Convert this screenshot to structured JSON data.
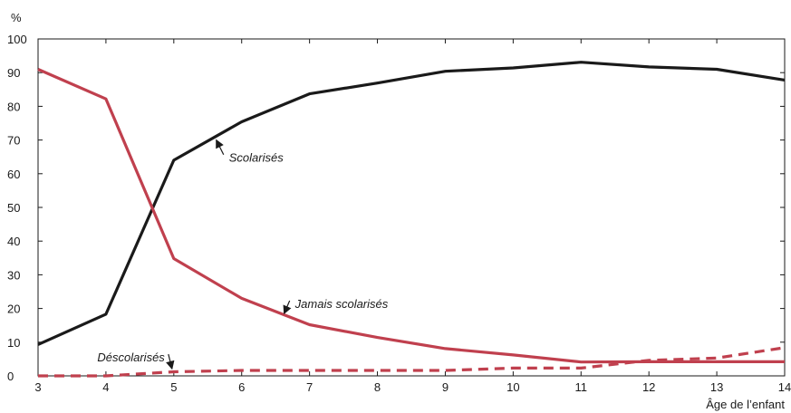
{
  "chart_data": {
    "type": "line",
    "ylabel": "%",
    "xlabel": "Âge de l’enfant",
    "xlim": [
      3,
      14
    ],
    "ylim": [
      0,
      100
    ],
    "x_ticks": [
      3,
      4,
      5,
      6,
      7,
      8,
      9,
      10,
      11,
      12,
      13,
      14
    ],
    "y_ticks": [
      0,
      10,
      20,
      30,
      40,
      50,
      60,
      70,
      80,
      90,
      100
    ],
    "grid": false,
    "x": [
      3,
      4,
      5,
      6,
      7,
      8,
      9,
      10,
      11,
      12,
      13,
      14
    ],
    "series": [
      {
        "name": "Scolarisés",
        "color": "#1a1a1a",
        "dash": "solid",
        "values": [
          9.3,
          18.3,
          64.0,
          75.4,
          83.7,
          86.9,
          90.4,
          91.4,
          93.1,
          91.7,
          91.0,
          87.8
        ]
      },
      {
        "name": "Jamais scolarisés",
        "color": "#c0404e",
        "dash": "solid",
        "values": [
          91.0,
          82.2,
          34.8,
          23.0,
          15.2,
          11.4,
          8.1,
          6.2,
          4.1,
          4.2,
          4.2,
          4.2
        ]
      },
      {
        "name": "Déscolarisés",
        "color": "#c0404e",
        "dash": "dashed",
        "values": [
          0,
          0,
          1.2,
          1.6,
          1.6,
          1.6,
          1.6,
          2.3,
          2.3,
          4.6,
          5.3,
          8.4
        ]
      }
    ],
    "annotations": [
      {
        "text": "Scolarisés",
        "x_at": 5.6,
        "y_at": 70.5
      },
      {
        "text": "Jamais scolarisés",
        "x_at": 6.6,
        "y_at": 18.0
      },
      {
        "text": "Déscolarisés",
        "x_at": 5.0,
        "y_at": 1.6
      }
    ]
  }
}
